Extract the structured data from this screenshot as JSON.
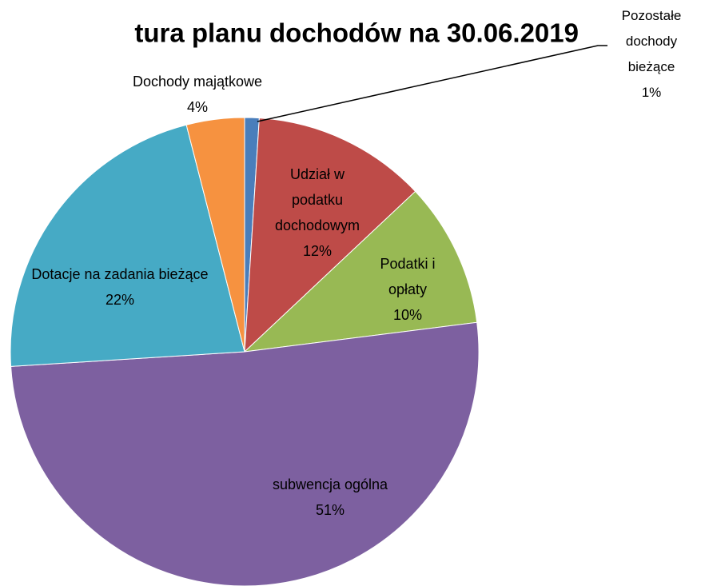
{
  "chart_data": {
    "type": "pie",
    "title": "tura  planu dochodów na 30.06.2019",
    "categories": [
      "Pozostałe dochody bieżące",
      "Udział w podatku dochodowym",
      "Podatki i opłaty",
      "subwencja ogólna",
      "Dotacje na zadania bieżące",
      "Dochody majątkowe"
    ],
    "values": [
      1,
      12,
      10,
      51,
      22,
      4
    ],
    "value_labels": [
      "1%",
      "12%",
      "10%",
      "51%",
      "22%",
      "4%"
    ],
    "colors": [
      "#4a7ebb",
      "#be4b48",
      "#98b954",
      "#7d60a0",
      "#46aac5",
      "#f69240"
    ]
  }
}
